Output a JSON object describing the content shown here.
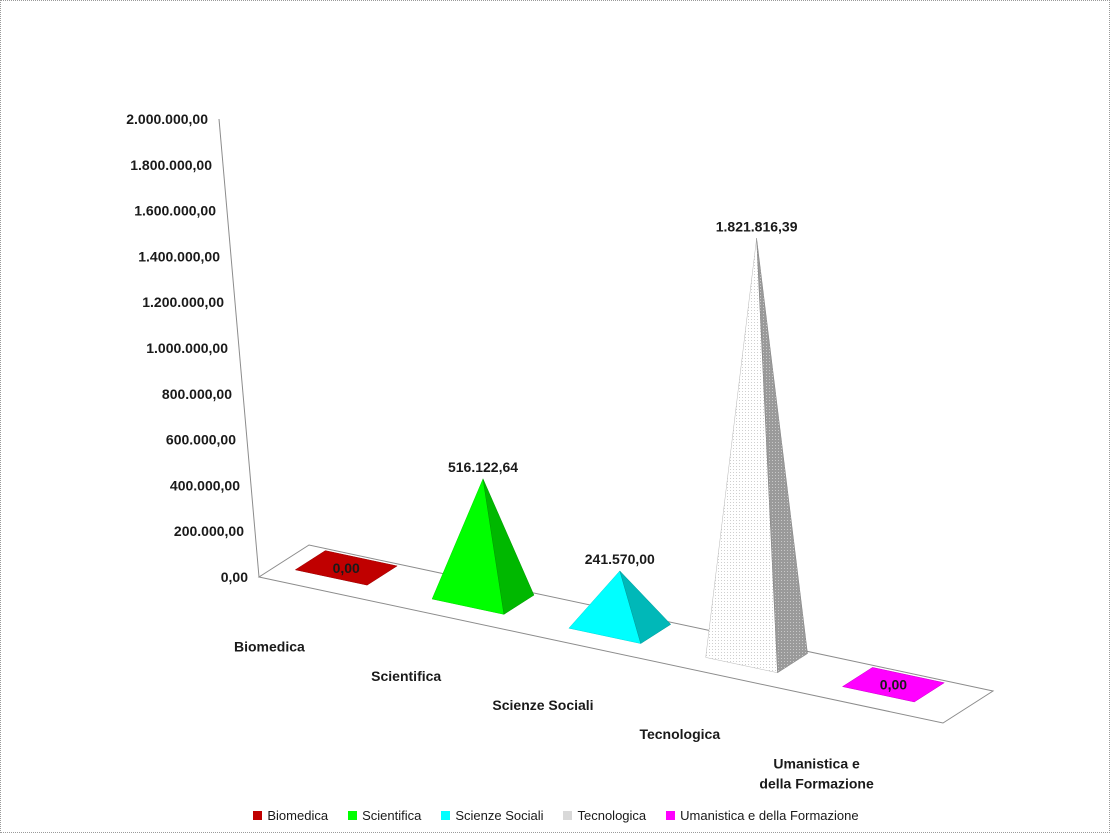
{
  "chart_data": {
    "type": "3d-pyramid",
    "title": "",
    "xlabel": "",
    "ylabel": "",
    "ylim": [
      0,
      2000000
    ],
    "y_ticks": [
      "0,00",
      "200.000,00",
      "400.000,00",
      "600.000,00",
      "800.000,00",
      "1.000.000,00",
      "1.200.000,00",
      "1.400.000,00",
      "1.600.000,00",
      "1.800.000,00",
      "2.000.000,00"
    ],
    "categories": [
      "Biomedica",
      "Scientifica",
      "Scienze Sociali",
      "Tecnologica",
      "Umanistica e della Formazione"
    ],
    "category_labels": [
      [
        "Biomedica"
      ],
      [
        "Scientifica"
      ],
      [
        "Scienze Sociali"
      ],
      [
        "Tecnologica"
      ],
      [
        "Umanistica e",
        "della Formazione"
      ]
    ],
    "values": [
      0,
      516122.64,
      241570.0,
      1821816.39,
      0
    ],
    "value_labels": [
      "0,00",
      "516.122,64",
      "241.570,00",
      "1.821.816,39",
      "0,00"
    ],
    "colors": [
      "#c00000",
      "#00ff00",
      "#00ffff",
      "#d9d9d9",
      "#ff00ff"
    ],
    "grid": false,
    "legend_position": "bottom",
    "legend": [
      "Biomedica",
      "Scientifica",
      "Scienze Sociali",
      "Tecnologica",
      "Umanistica e della Formazione"
    ]
  }
}
